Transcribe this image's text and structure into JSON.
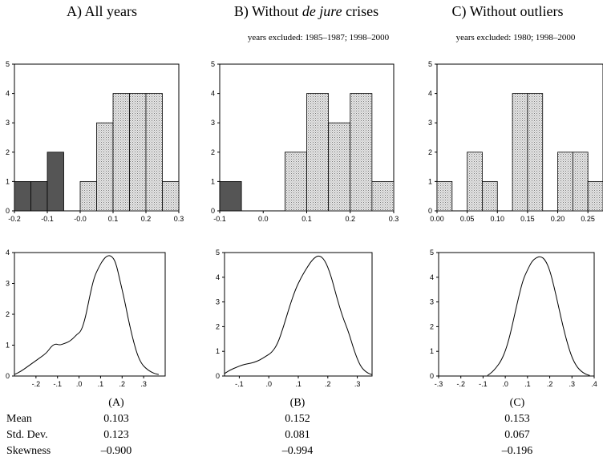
{
  "panels": [
    {
      "title_prefix": "A) All years",
      "title_italic": "",
      "title_suffix": "",
      "subtitle": "",
      "label": "(A)"
    },
    {
      "title_prefix": "B) Without ",
      "title_italic": "de jure",
      "title_suffix": " crises",
      "subtitle": "years excluded: 1985–1987; 1998–2000",
      "label": "(B)"
    },
    {
      "title_prefix": "C) Without outliers",
      "title_italic": "",
      "title_suffix": "",
      "subtitle": "years excluded:  1980; 1998–2000",
      "label": "(C)"
    }
  ],
  "stats": {
    "rows": [
      {
        "label": "Mean",
        "values": [
          "0.103",
          "0.152",
          "0.153"
        ]
      },
      {
        "label": "Std. Dev.",
        "values": [
          "0.123",
          "0.081",
          "0.067"
        ]
      },
      {
        "label": "Skewness",
        "values": [
          "–0.900",
          "–0.994",
          "–0.196"
        ]
      }
    ]
  },
  "colors": {
    "dark_bar": "#555555",
    "light_bar": "#d9d9d9",
    "frame": "#000000"
  },
  "chart_data": [
    {
      "type": "bar",
      "panel": "A",
      "xlim": [
        -0.2,
        0.3
      ],
      "ylim": [
        0,
        5
      ],
      "xticks": [
        "-0.2",
        "-0.1",
        "-0.0",
        "0.1",
        "0.2",
        "0.3"
      ],
      "yticks": [
        "0",
        "1",
        "2",
        "3",
        "4",
        "5"
      ],
      "bins": [
        {
          "from": -0.2,
          "to": -0.15,
          "count": 1,
          "shade": "dark"
        },
        {
          "from": -0.15,
          "to": -0.1,
          "count": 1,
          "shade": "dark"
        },
        {
          "from": -0.1,
          "to": -0.05,
          "count": 2,
          "shade": "dark"
        },
        {
          "from": -0.05,
          "to": 0.0,
          "count": 0,
          "shade": "dark"
        },
        {
          "from": 0.0,
          "to": 0.05,
          "count": 1,
          "shade": "light"
        },
        {
          "from": 0.05,
          "to": 0.1,
          "count": 3,
          "shade": "light"
        },
        {
          "from": 0.1,
          "to": 0.15,
          "count": 4,
          "shade": "light"
        },
        {
          "from": 0.15,
          "to": 0.2,
          "count": 4,
          "shade": "light"
        },
        {
          "from": 0.2,
          "to": 0.25,
          "count": 4,
          "shade": "light"
        },
        {
          "from": 0.25,
          "to": 0.3,
          "count": 1,
          "shade": "light"
        }
      ]
    },
    {
      "type": "bar",
      "panel": "B",
      "xlim": [
        -0.1,
        0.3
      ],
      "ylim": [
        0,
        5
      ],
      "xticks": [
        "-0.1",
        "0.0",
        "0.1",
        "0.2",
        "0.3"
      ],
      "yticks": [
        "0",
        "1",
        "2",
        "3",
        "4",
        "5"
      ],
      "bins": [
        {
          "from": -0.1,
          "to": -0.05,
          "count": 1,
          "shade": "dark"
        },
        {
          "from": -0.05,
          "to": 0.0,
          "count": 0,
          "shade": "dark"
        },
        {
          "from": 0.0,
          "to": 0.05,
          "count": 0,
          "shade": "light"
        },
        {
          "from": 0.05,
          "to": 0.1,
          "count": 2,
          "shade": "light"
        },
        {
          "from": 0.1,
          "to": 0.15,
          "count": 4,
          "shade": "light"
        },
        {
          "from": 0.15,
          "to": 0.2,
          "count": 3,
          "shade": "light"
        },
        {
          "from": 0.2,
          "to": 0.25,
          "count": 4,
          "shade": "light"
        },
        {
          "from": 0.25,
          "to": 0.3,
          "count": 1,
          "shade": "light"
        }
      ]
    },
    {
      "type": "bar",
      "panel": "C",
      "xlim": [
        0.0,
        0.275
      ],
      "ylim": [
        0,
        5
      ],
      "xticks": [
        "0.00",
        "0.05",
        "0.10",
        "0.15",
        "0.20",
        "0.25"
      ],
      "xtick_values": [
        0.0,
        0.05,
        0.1,
        0.15,
        0.2,
        0.25
      ],
      "yticks": [
        "0",
        "1",
        "2",
        "3",
        "4",
        "5"
      ],
      "bins": [
        {
          "from": 0.0,
          "to": 0.025,
          "count": 1,
          "shade": "light"
        },
        {
          "from": 0.025,
          "to": 0.05,
          "count": 0,
          "shade": "light"
        },
        {
          "from": 0.05,
          "to": 0.075,
          "count": 2,
          "shade": "light"
        },
        {
          "from": 0.075,
          "to": 0.1,
          "count": 1,
          "shade": "light"
        },
        {
          "from": 0.1,
          "to": 0.125,
          "count": 0,
          "shade": "light"
        },
        {
          "from": 0.125,
          "to": 0.15,
          "count": 4,
          "shade": "light"
        },
        {
          "from": 0.15,
          "to": 0.175,
          "count": 4,
          "shade": "light"
        },
        {
          "from": 0.175,
          "to": 0.2,
          "count": 0,
          "shade": "light"
        },
        {
          "from": 0.2,
          "to": 0.225,
          "count": 2,
          "shade": "light"
        },
        {
          "from": 0.225,
          "to": 0.25,
          "count": 2,
          "shade": "light"
        },
        {
          "from": 0.25,
          "to": 0.275,
          "count": 1,
          "shade": "light"
        }
      ]
    },
    {
      "type": "line",
      "panel": "A",
      "xlim": [
        -0.3,
        0.4
      ],
      "ylim": [
        0,
        4
      ],
      "xticks": [
        "-.2",
        "-.1",
        ".0",
        ".1",
        ".2",
        ".3"
      ],
      "xtick_values": [
        -0.2,
        -0.1,
        0.0,
        0.1,
        0.2,
        0.3
      ],
      "yticks": [
        "0",
        "1",
        "2",
        "3",
        "4"
      ],
      "x": [
        -0.3,
        -0.27,
        -0.24,
        -0.21,
        -0.18,
        -0.15,
        -0.13,
        -0.11,
        -0.09,
        -0.07,
        -0.05,
        -0.03,
        -0.01,
        0.01,
        0.03,
        0.05,
        0.07,
        0.09,
        0.11,
        0.13,
        0.15,
        0.17,
        0.19,
        0.21,
        0.23,
        0.25,
        0.27,
        0.29,
        0.31,
        0.33,
        0.35,
        0.37
      ],
      "y": [
        0.05,
        0.15,
        0.3,
        0.45,
        0.6,
        0.75,
        0.95,
        1.05,
        1.0,
        1.05,
        1.1,
        1.2,
        1.35,
        1.45,
        1.9,
        2.6,
        3.2,
        3.5,
        3.75,
        3.9,
        3.9,
        3.7,
        3.1,
        2.5,
        1.8,
        1.2,
        0.7,
        0.4,
        0.25,
        0.15,
        0.08,
        0.05
      ]
    },
    {
      "type": "line",
      "panel": "B",
      "xlim": [
        -0.15,
        0.35
      ],
      "ylim": [
        0,
        5
      ],
      "xticks": [
        "-.1",
        ".0",
        ".1",
        ".2",
        ".3"
      ],
      "xtick_values": [
        -0.1,
        0.0,
        0.1,
        0.2,
        0.3
      ],
      "yticks": [
        "0",
        "1",
        "2",
        "3",
        "4",
        "5"
      ],
      "x": [
        -0.15,
        -0.13,
        -0.11,
        -0.09,
        -0.07,
        -0.05,
        -0.03,
        -0.01,
        0.01,
        0.03,
        0.05,
        0.07,
        0.09,
        0.11,
        0.13,
        0.15,
        0.17,
        0.19,
        0.21,
        0.23,
        0.25,
        0.27,
        0.29,
        0.31,
        0.33,
        0.35
      ],
      "y": [
        0.1,
        0.25,
        0.35,
        0.45,
        0.5,
        0.55,
        0.65,
        0.8,
        0.95,
        1.3,
        2.0,
        2.8,
        3.5,
        4.0,
        4.4,
        4.75,
        4.9,
        4.7,
        4.1,
        3.2,
        2.4,
        1.8,
        1.0,
        0.4,
        0.15,
        0.05
      ]
    },
    {
      "type": "line",
      "panel": "C",
      "xlim": [
        -0.3,
        0.4
      ],
      "ylim": [
        0,
        5
      ],
      "xticks": [
        "-.3",
        "-.2",
        "-.1",
        ".0",
        ".1",
        ".2",
        ".3",
        ".4"
      ],
      "xtick_values": [
        -0.3,
        -0.2,
        -0.1,
        0.0,
        0.1,
        0.2,
        0.3,
        0.4
      ],
      "yticks": [
        "0",
        "1",
        "2",
        "3",
        "4",
        "5"
      ],
      "x": [
        -0.08,
        -0.06,
        -0.04,
        -0.02,
        0.0,
        0.02,
        0.04,
        0.06,
        0.08,
        0.1,
        0.12,
        0.14,
        0.16,
        0.18,
        0.2,
        0.22,
        0.24,
        0.26,
        0.28,
        0.3,
        0.32,
        0.34,
        0.36,
        0.38
      ],
      "y": [
        0.02,
        0.15,
        0.35,
        0.6,
        1.0,
        1.6,
        2.4,
        3.2,
        3.9,
        4.3,
        4.65,
        4.8,
        4.85,
        4.7,
        4.3,
        3.6,
        2.8,
        2.0,
        1.3,
        0.75,
        0.4,
        0.2,
        0.08,
        0.02
      ]
    }
  ]
}
